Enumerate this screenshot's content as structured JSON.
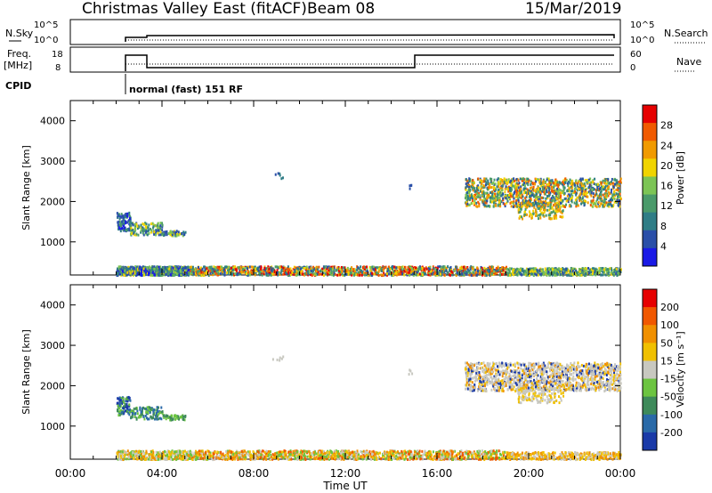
{
  "header": {
    "title": "Christmas Valley East (fitACF)",
    "beam": "Beam 08",
    "date": "15/Mar/2019"
  },
  "top_panels": {
    "nsky_label": "N.Sky",
    "nsky_ticks": [
      "10^5",
      "10^0"
    ],
    "nsearch_label": "N.Search",
    "nsearch_ticks": [
      "10^5",
      "10^0"
    ],
    "freq_label_1": "Freq.",
    "freq_label_2": "[MHz]",
    "freq_ticks": [
      "18",
      "8"
    ],
    "nave_label": "Nave",
    "nave_ticks": [
      "60",
      "0"
    ],
    "cpid_label": "CPID",
    "cpid_text": "normal (fast) 151 RF"
  },
  "colors": {
    "power": [
      "#1a1ae6",
      "#2a4fa8",
      "#2f7d86",
      "#4a9a6a",
      "#7cc455",
      "#f0d400",
      "#f09a00",
      "#f05a00",
      "#e60000"
    ],
    "velocity": [
      "#1a3aa8",
      "#2a6aa8",
      "#3e8a5a",
      "#6cc440",
      "#c8c8c0",
      "#f0c000",
      "#f09000",
      "#f05800",
      "#e60000"
    ]
  },
  "chart_data": [
    {
      "type": "heatmap",
      "name": "Power",
      "ylabel": "Slant Range [km]",
      "yticks": [
        1000,
        2000,
        3000,
        4000
      ],
      "colorbar_label": "Power [dB]",
      "colorbar_ticks": [
        "28",
        "24",
        "20",
        "16",
        "12",
        "8",
        "4"
      ],
      "ylim": [
        180,
        4500
      ],
      "xlim_hours": [
        0,
        24
      ]
    },
    {
      "type": "heatmap",
      "name": "Velocity",
      "ylabel": "Slant Range [km]",
      "yticks": [
        1000,
        2000,
        3000,
        4000
      ],
      "colorbar_label": "Velocity [m s⁻¹]",
      "colorbar_ticks": [
        "200",
        "100",
        "50",
        "15",
        "-15",
        "-50",
        "-100",
        "-200"
      ],
      "ylim": [
        180,
        4500
      ],
      "xlim_hours": [
        0,
        24
      ]
    }
  ],
  "xaxis": {
    "ticks": [
      "00:00",
      "04:00",
      "08:00",
      "12:00",
      "16:00",
      "20:00",
      "00:00"
    ],
    "label": "Time UT"
  }
}
